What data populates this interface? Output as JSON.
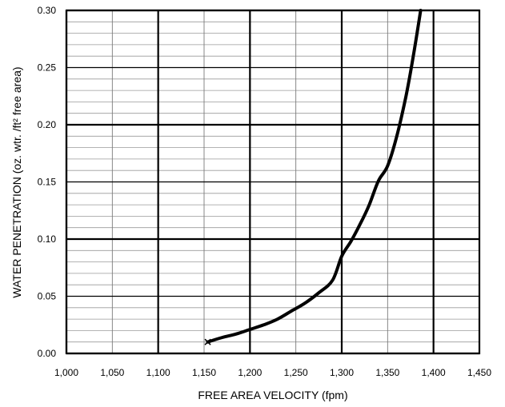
{
  "chart_data": {
    "type": "line",
    "title": "",
    "xlabel": "FREE AREA VELOCITY (fpm)",
    "ylabel": "WATER PENETRATION (oz. wtr. /ft² free area)",
    "xlim": [
      1000,
      1450
    ],
    "ylim": [
      0,
      0.3
    ],
    "x_ticks": [
      "1,000",
      "1,050",
      "1,100",
      "1,150",
      "1,200",
      "1,250",
      "1,300",
      "1,350",
      "1,400",
      "1,450"
    ],
    "y_ticks": [
      "0.00",
      "0.05",
      "0.10",
      "0.15",
      "0.20",
      "0.25",
      "0.30"
    ],
    "x_tick_values": [
      1000,
      1050,
      1100,
      1150,
      1200,
      1250,
      1300,
      1350,
      1400,
      1450
    ],
    "y_tick_values": [
      0,
      0.05,
      0.1,
      0.15,
      0.2,
      0.25,
      0.3
    ],
    "minor_y_step": 0.01,
    "grid": true,
    "series": [
      {
        "name": "",
        "color": "#000000",
        "x": [
          1154,
          1170,
          1185,
          1200,
          1215,
          1230,
          1245,
          1260,
          1275,
          1290,
          1300,
          1310,
          1320,
          1330,
          1340,
          1350,
          1360,
          1370,
          1378,
          1386
        ],
        "y": [
          0.01,
          0.014,
          0.017,
          0.021,
          0.025,
          0.03,
          0.037,
          0.044,
          0.053,
          0.064,
          0.085,
          0.098,
          0.113,
          0.13,
          0.151,
          0.164,
          0.19,
          0.225,
          0.26,
          0.3
        ]
      }
    ],
    "markers": [
      {
        "x": 1154,
        "y": 0.01,
        "symbol": "x"
      }
    ]
  }
}
